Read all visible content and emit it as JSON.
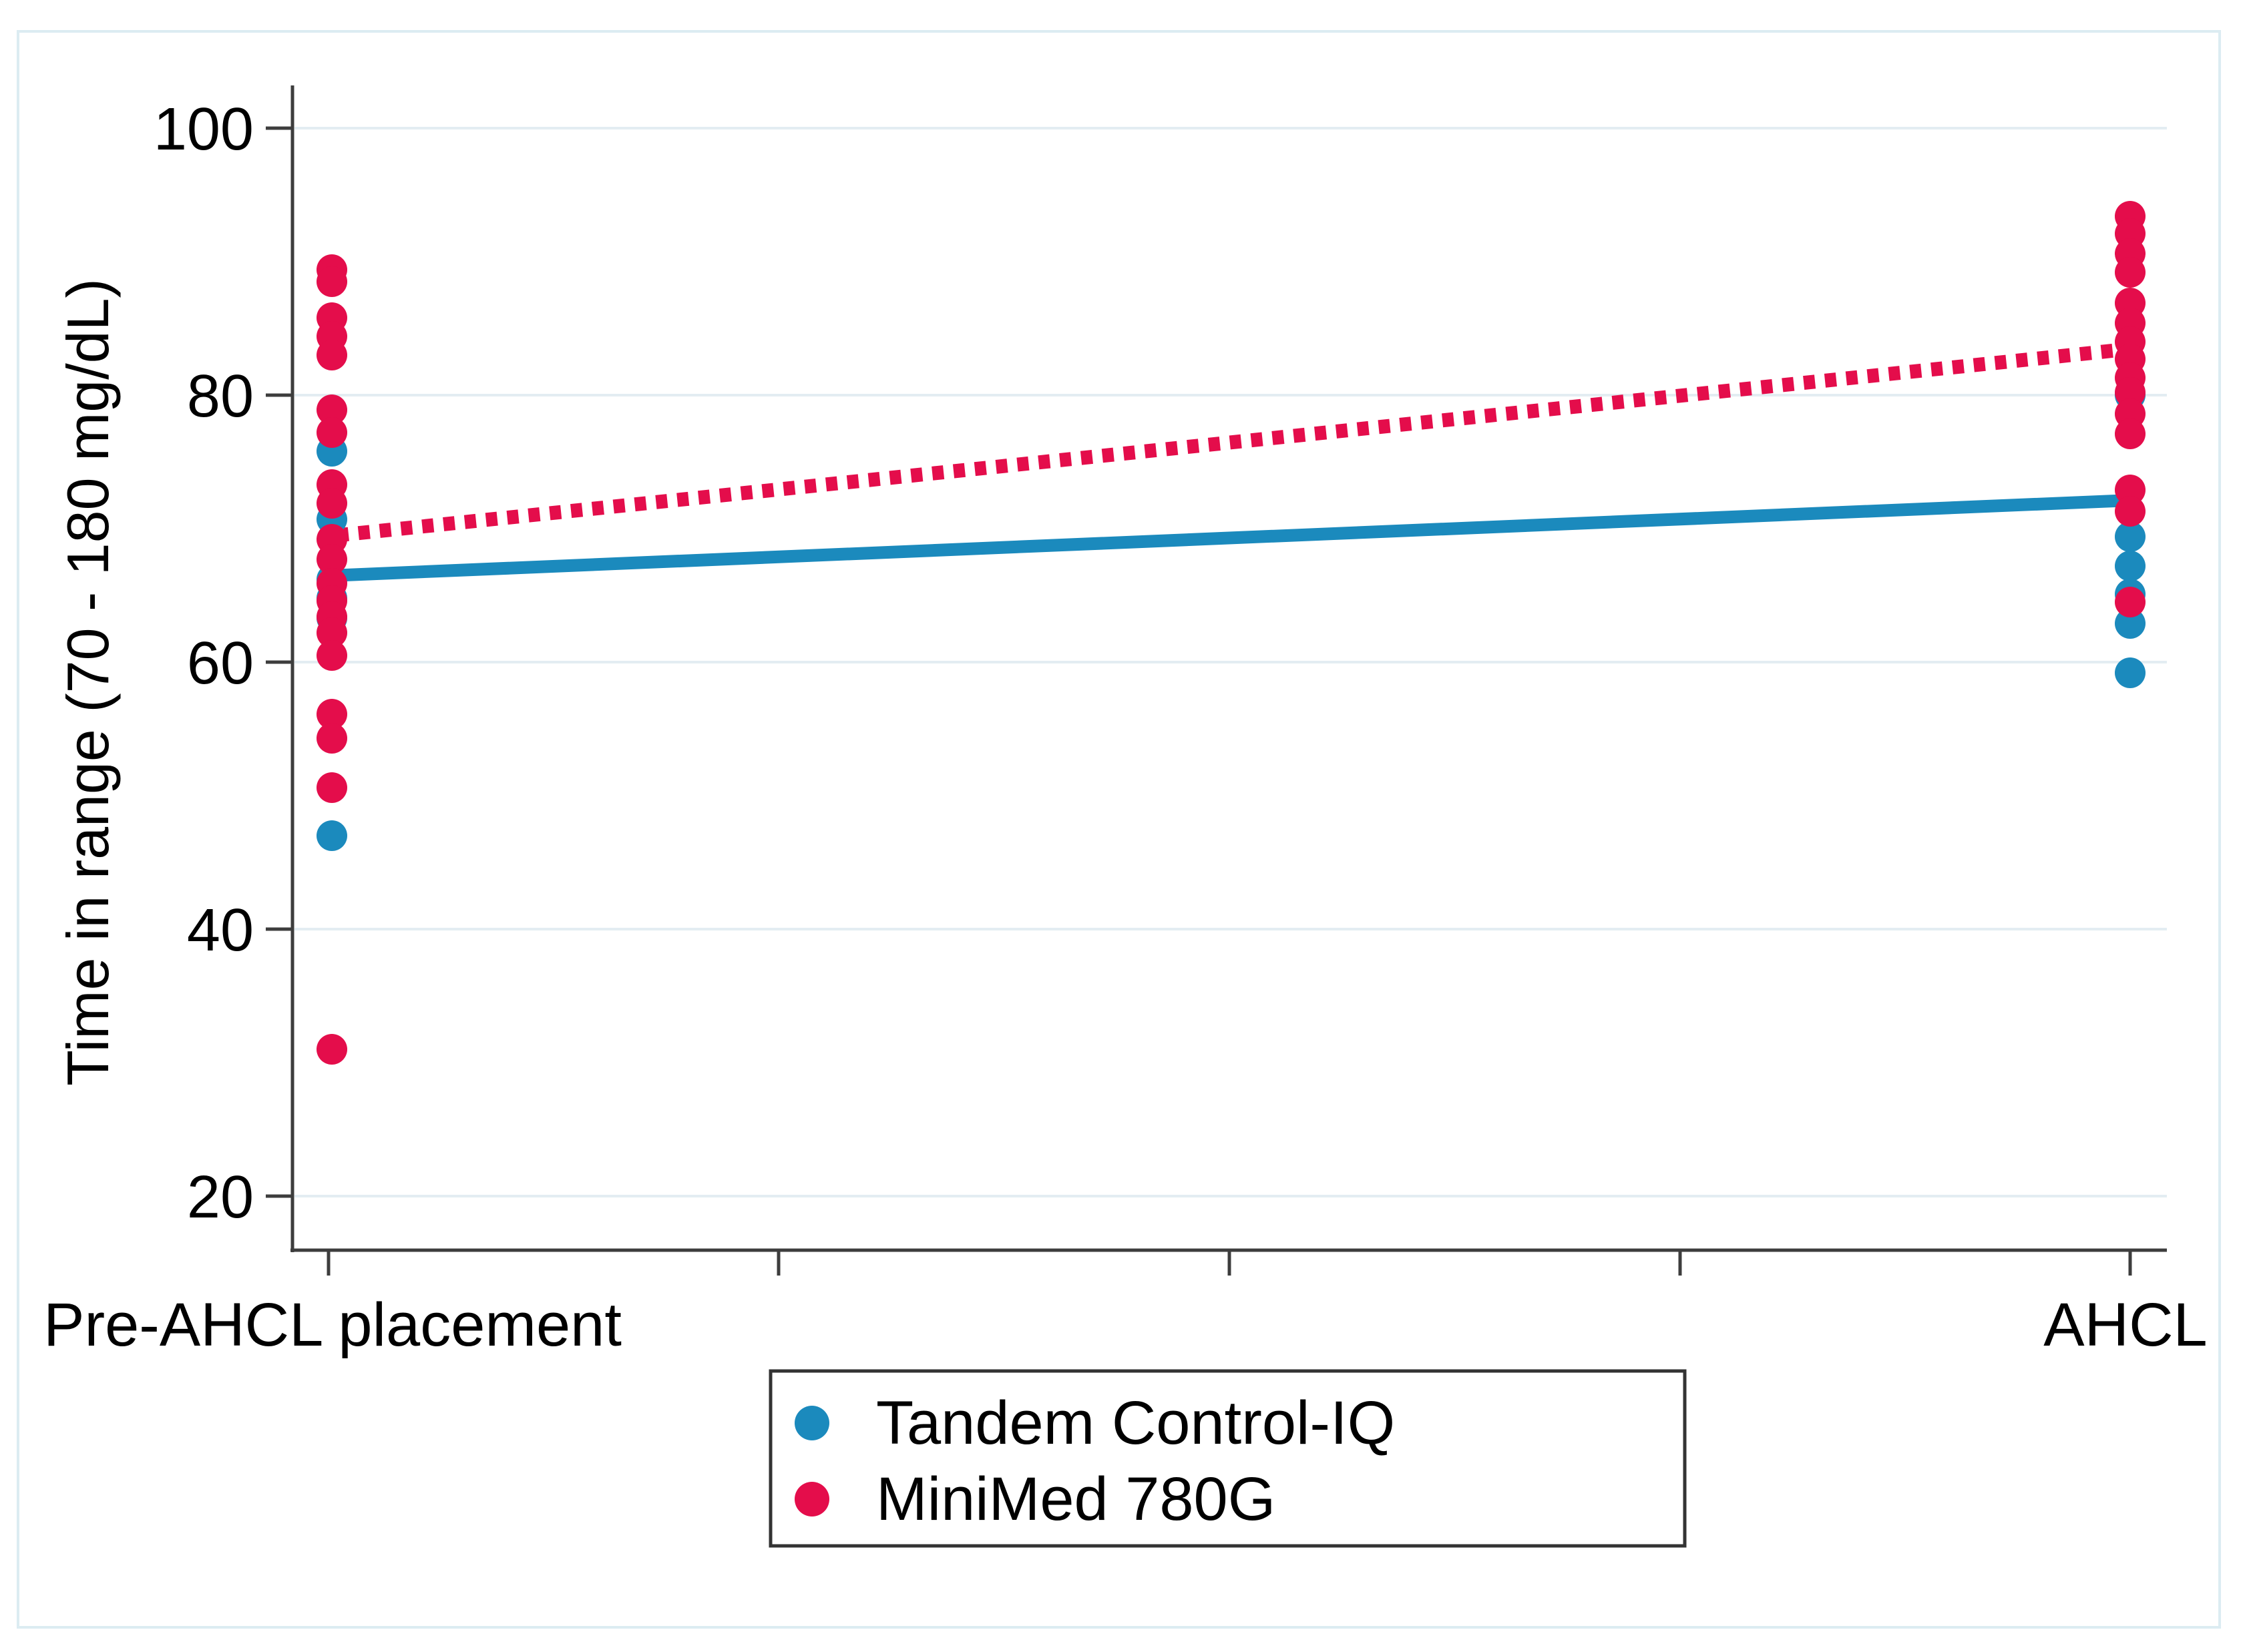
{
  "chart_data": {
    "type": "scatter",
    "title": "",
    "xlabel": "",
    "ylabel": "Time in range (70 - 180 mg/dL)",
    "categories": [
      "Pre-AHCL placement",
      "AHCL"
    ],
    "y_axis": {
      "ticks": [
        100,
        80,
        60,
        40,
        20
      ],
      "ylim": [
        16,
        103
      ],
      "grid": true
    },
    "x_axis": {
      "labeled_ticks": [
        "Pre-AHCL placement",
        "AHCL"
      ],
      "minor_tick_count": 3
    },
    "legend": {
      "position": "bottom-center",
      "border": true
    },
    "series": [
      {
        "name": "Tandem Control-IQ",
        "color": "#1b8abd",
        "marker": "circle",
        "trend_style": "solid",
        "pre_ahcl_values": [
          75.8,
          70.7,
          66.2,
          64.8,
          63.3,
          47.0
        ],
        "ahcl_values": [
          80.0,
          69.4,
          67.2,
          65.1,
          62.9,
          59.2
        ],
        "trend": {
          "pre_ahcl": 66.5,
          "ahcl": 72.1
        }
      },
      {
        "name": "MiniMed 780G",
        "color": "#e40d4b",
        "marker": "circle",
        "trend_style": "dotted",
        "pre_ahcl_values": [
          89.4,
          88.5,
          85.8,
          84.4,
          83.0,
          78.9,
          77.2,
          73.3,
          71.9,
          69.2,
          67.7,
          65.9,
          64.6,
          63.4,
          62.2,
          60.5,
          56.1,
          54.3,
          50.6,
          31.0
        ],
        "ahcl_values": [
          93.4,
          92.1,
          90.6,
          89.2,
          86.9,
          85.4,
          84.0,
          82.7,
          81.3,
          80.2,
          78.6,
          77.1,
          72.9,
          71.3,
          64.5
        ],
        "trend": {
          "pre_ahcl": 69.5,
          "ahcl": 83.4
        }
      }
    ],
    "style": {
      "axis_color": "#3d3d3d",
      "gridline_color": "#e3edf2",
      "figure_border_color": "#dcecf2",
      "background": "#ffffff"
    }
  }
}
